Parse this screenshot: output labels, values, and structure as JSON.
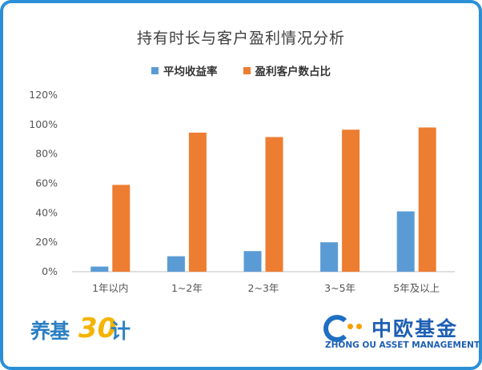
{
  "chart_data": {
    "type": "bar",
    "title": "持有时长与客户盈利情况分析",
    "categories": [
      "1年以内",
      "1~2年",
      "2~3年",
      "3~5年",
      "5年及以上"
    ],
    "series": [
      {
        "name": "平均收益率",
        "color": "#5b9bd5",
        "values": [
          3.5,
          10.5,
          14,
          20,
          41
        ]
      },
      {
        "name": "盈利客户数占比",
        "color": "#ed7d31",
        "values": [
          59,
          94.5,
          91.5,
          96.5,
          98
        ]
      }
    ],
    "yticks": [
      "0%",
      "20%",
      "40%",
      "60%",
      "80%",
      "100%",
      "120%"
    ],
    "ylim": [
      0,
      120
    ],
    "grid": false,
    "legend_position": "top"
  },
  "logos": {
    "left": {
      "part1": "养基",
      "part2": "30",
      "part3": "计"
    },
    "right": {
      "cn": "中欧基金",
      "en": "ZHONG OU ASSET MANAGEMENT"
    }
  }
}
